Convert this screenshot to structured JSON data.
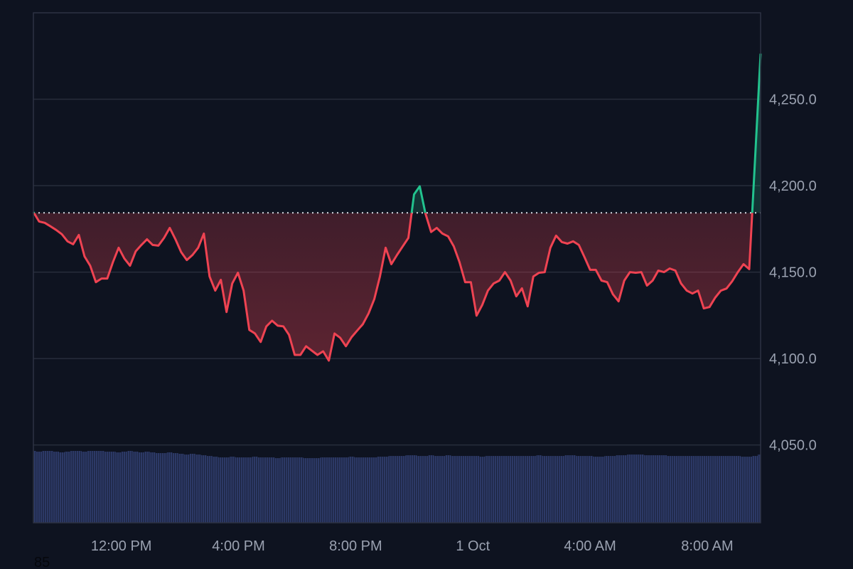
{
  "chart_data": {
    "type": "area",
    "title": "",
    "xlabel": "",
    "ylabel": "",
    "x_hours_range": [
      9.0,
      33.82
    ],
    "ylim": [
      4005,
      4300
    ],
    "baseline": 4184.3,
    "grid": true,
    "colors": {
      "up": "#22c38e",
      "down": "#ef4352",
      "volume": "#2c3966",
      "grid": "#272d3b",
      "background": "#0e1320"
    },
    "x_ticks": [
      {
        "hour": 12,
        "label": "12:00 PM"
      },
      {
        "hour": 16,
        "label": "4:00 PM"
      },
      {
        "hour": 20,
        "label": "8:00 PM"
      },
      {
        "hour": 24,
        "label": "1 Oct"
      },
      {
        "hour": 28,
        "label": "4:00 AM"
      },
      {
        "hour": 32,
        "label": "8:00 AM"
      }
    ],
    "y_ticks": [
      {
        "value": 4250,
        "label": "4,250.0"
      },
      {
        "value": 4200,
        "label": "4,200.0"
      },
      {
        "value": 4150,
        "label": "4,150.0"
      },
      {
        "value": 4100,
        "label": "4,100.0"
      },
      {
        "value": 4050,
        "label": "4,050.0"
      }
    ],
    "corner_label": "85",
    "series": [
      {
        "name": "price",
        "values": [
          4184.7,
          4179.3,
          4178.5,
          4176.5,
          4174.4,
          4171.9,
          4167.8,
          4166.1,
          4171.5,
          4159.1,
          4153.7,
          4144.2,
          4146.3,
          4146.3,
          4155.8,
          4164.1,
          4157.9,
          4153.7,
          4162.0,
          4165.7,
          4169.0,
          4165.7,
          4165.3,
          4169.8,
          4175.6,
          4169.0,
          4161.6,
          4157.0,
          4159.9,
          4164.1,
          4172.3,
          4147.5,
          4139.3,
          4145.5,
          4126.9,
          4143.4,
          4149.6,
          4139.3,
          4116.6,
          4114.5,
          4109.6,
          4118.6,
          4121.9,
          4119.0,
          4118.6,
          4113.7,
          4102.1,
          4102.1,
          4107.1,
          4104.6,
          4102.1,
          4104.2,
          4098.8,
          4114.5,
          4112.0,
          4107.1,
          4112.4,
          4116.2,
          4119.9,
          4126.1,
          4134.3,
          4147.5,
          4164.1,
          4154.6,
          4159.9,
          4164.9,
          4169.8,
          4195.0,
          4199.6,
          4183.9,
          4173.2,
          4175.6,
          4172.3,
          4170.7,
          4164.9,
          4155.8,
          4144.2,
          4144.2,
          4124.8,
          4131.0,
          4139.3,
          4143.4,
          4145.1,
          4150.0,
          4145.1,
          4136.0,
          4140.6,
          4130.2,
          4147.5,
          4149.6,
          4150.0,
          4164.1,
          4171.1,
          4167.4,
          4166.5,
          4167.8,
          4165.7,
          4158.7,
          4151.3,
          4151.3,
          4145.1,
          4144.2,
          4137.2,
          4133.1,
          4145.1,
          4150.0,
          4149.6,
          4150.0,
          4142.2,
          4145.1,
          4150.9,
          4150.0,
          4152.1,
          4150.9,
          4143.4,
          4139.3,
          4137.6,
          4139.3,
          4129.0,
          4129.8,
          4135.2,
          4139.3,
          4140.5,
          4144.7,
          4150.0,
          4154.6,
          4151.7,
          4213.6,
          4276.4
        ]
      },
      {
        "name": "volume",
        "values": [
          100,
          99,
          100,
          100,
          99,
          98,
          99,
          100,
          100,
          99,
          100,
          100,
          100,
          99,
          99,
          98,
          99,
          100,
          99,
          98,
          99,
          98,
          97,
          97,
          98,
          97,
          96,
          95,
          96,
          95,
          94,
          93,
          92,
          91,
          91,
          92,
          91,
          91,
          91,
          92,
          91,
          91,
          91,
          90,
          91,
          91,
          91,
          91,
          90,
          90,
          90,
          91,
          91,
          91,
          91,
          91,
          92,
          91,
          91,
          91,
          91,
          92,
          92,
          93,
          93,
          93,
          94,
          94,
          93,
          93,
          94,
          93,
          93,
          94,
          93,
          93,
          93,
          93,
          93,
          92,
          93,
          93,
          93,
          93,
          93,
          93,
          93,
          93,
          93,
          94,
          93,
          93,
          93,
          93,
          94,
          94,
          93,
          93,
          93,
          92,
          92,
          93,
          93,
          94,
          94,
          95,
          95,
          95,
          94,
          94,
          94,
          94,
          93,
          93,
          93,
          93,
          93,
          93,
          93,
          93,
          93,
          93,
          93,
          93,
          93,
          92,
          92,
          93,
          95
        ]
      }
    ]
  }
}
